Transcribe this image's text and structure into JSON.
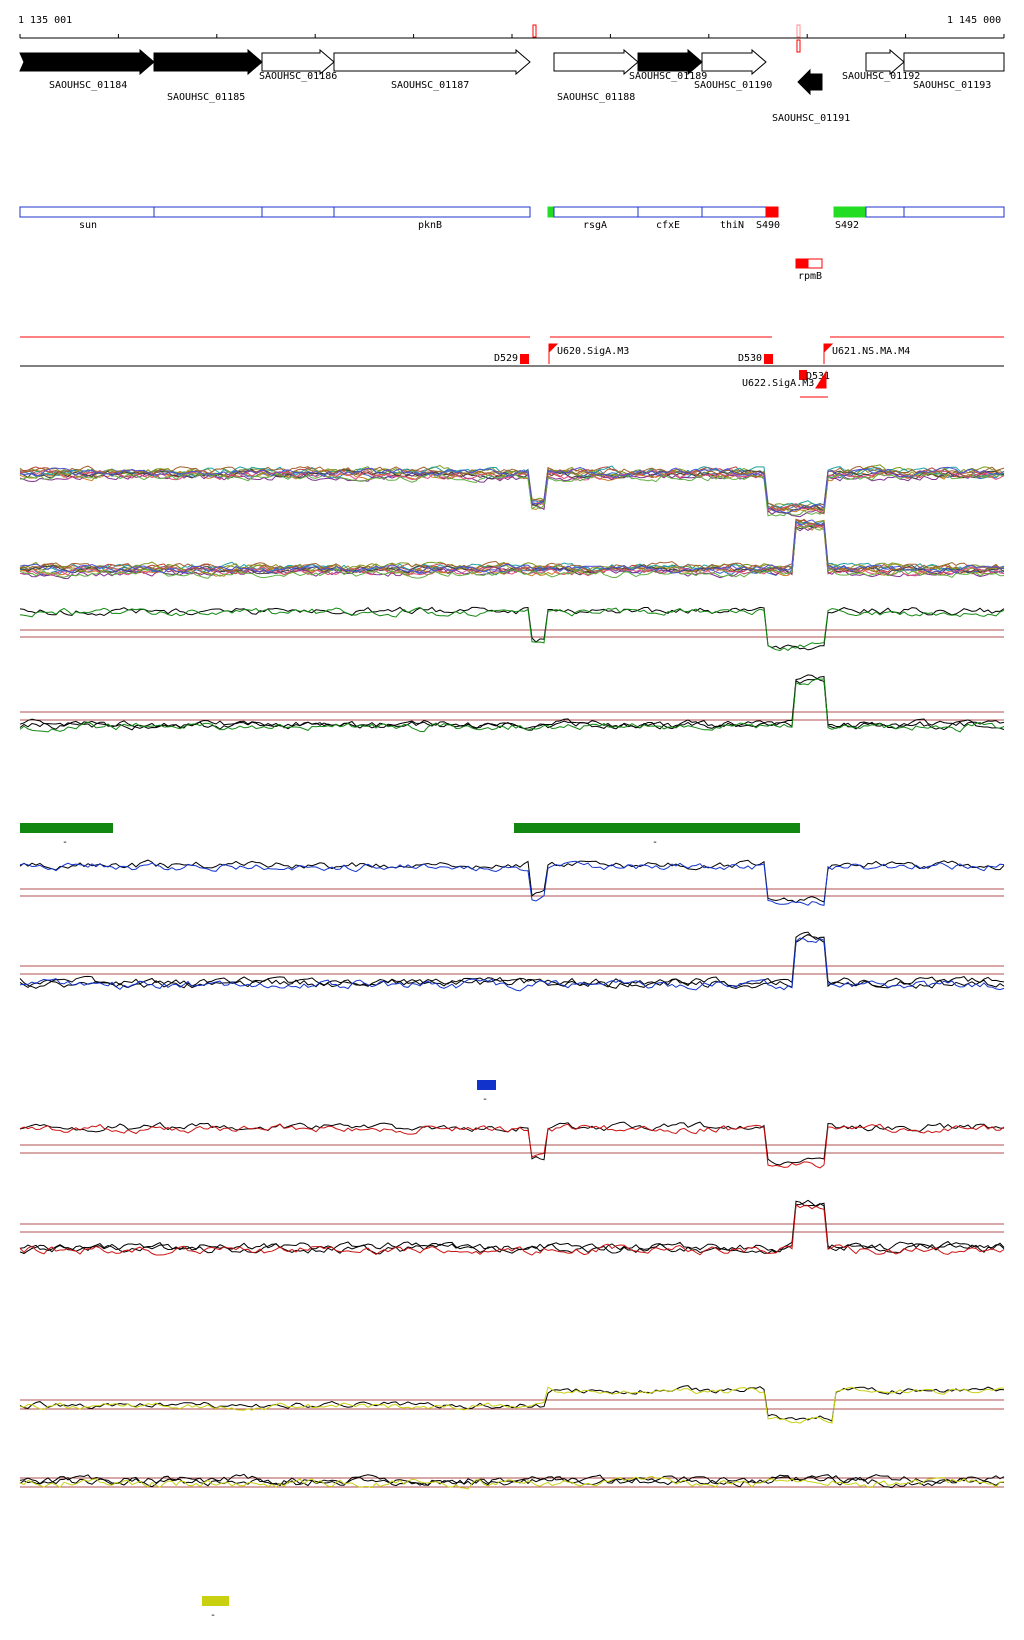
{
  "coords": {
    "start": "1 135 001",
    "end": "1 145 000"
  },
  "genes": [
    {
      "label": "SAOUHSC_01184",
      "filled": true,
      "dir": "right"
    },
    {
      "label": "SAOUHSC_01185",
      "filled": true,
      "dir": "right"
    },
    {
      "label": "SAOUHSC_01186",
      "filled": false,
      "dir": "right"
    },
    {
      "label": "SAOUHSC_01187",
      "filled": false,
      "dir": "right"
    },
    {
      "label": "SAOUHSC_01188",
      "filled": false,
      "dir": "right"
    },
    {
      "label": "SAOUHSC_01189",
      "filled": true,
      "dir": "right"
    },
    {
      "label": "SAOUHSC_01190",
      "filled": false,
      "dir": "right"
    },
    {
      "label": "SAOUHSC_01191",
      "filled": true,
      "dir": "left"
    },
    {
      "label": "SAOUHSC_01192",
      "filled": false,
      "dir": "right"
    },
    {
      "label": "SAOUHSC_01193",
      "filled": false,
      "dir": "right"
    }
  ],
  "annotations": [
    "sun",
    "pknB",
    "rsgA",
    "cfxE",
    "thiN",
    "S490",
    "S492"
  ],
  "small_gene": "rpmB",
  "regulatory_labels": [
    "D529",
    "U620.SigA.M3",
    "D530",
    "U621.NS.MA.M4",
    "D531",
    "U622.SigA.M3"
  ],
  "colors": {
    "gene_outline": "#000000",
    "annotation_box": "#2233cc",
    "highlight_red": "#ff0000",
    "highlight_green": "#22dd22",
    "threshold_line": "#b05050",
    "group_green": "#118811",
    "group_blue": "#1133cc",
    "group_red": "#cc1111",
    "group_yellow": "#c8d010",
    "reference": "#000000"
  },
  "bar_markers": [
    "-",
    "-",
    "-",
    "-"
  ]
}
